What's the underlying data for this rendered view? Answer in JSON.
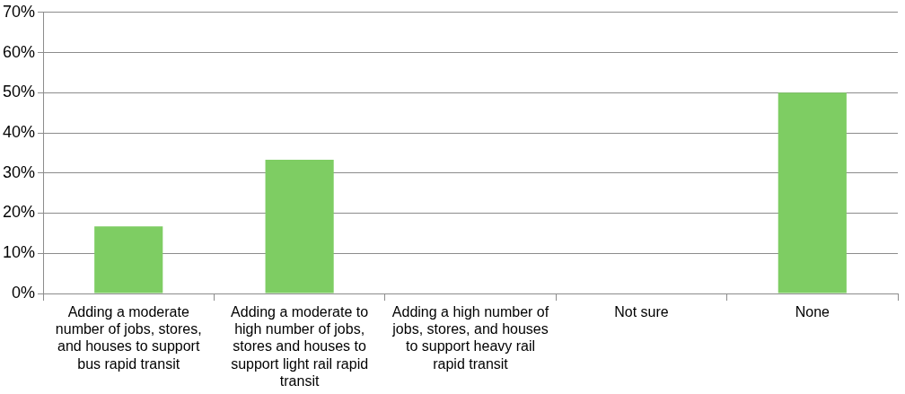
{
  "chart_data": {
    "type": "bar",
    "categories": [
      "Adding a moderate number of jobs, stores, and houses to support bus rapid transit",
      "Adding a moderate to high number of jobs, stores and houses to support light rail rapid transit",
      "Adding a high number of jobs, stores, and houses to support heavy rail rapid transit",
      "Not sure",
      "None"
    ],
    "values": [
      16.7,
      33.3,
      0,
      0,
      50
    ],
    "color": "#7ecd63",
    "ylim": [
      0,
      70
    ],
    "yticks": [
      {
        "value": 0,
        "label": "0%"
      },
      {
        "value": 10,
        "label": "10%"
      },
      {
        "value": 20,
        "label": "20%"
      },
      {
        "value": 30,
        "label": "30%"
      },
      {
        "value": 40,
        "label": "40%"
      },
      {
        "value": 50,
        "label": "50%"
      },
      {
        "value": 60,
        "label": "60%"
      },
      {
        "value": 70,
        "label": "70%"
      }
    ],
    "grid": "y",
    "legend": false
  }
}
